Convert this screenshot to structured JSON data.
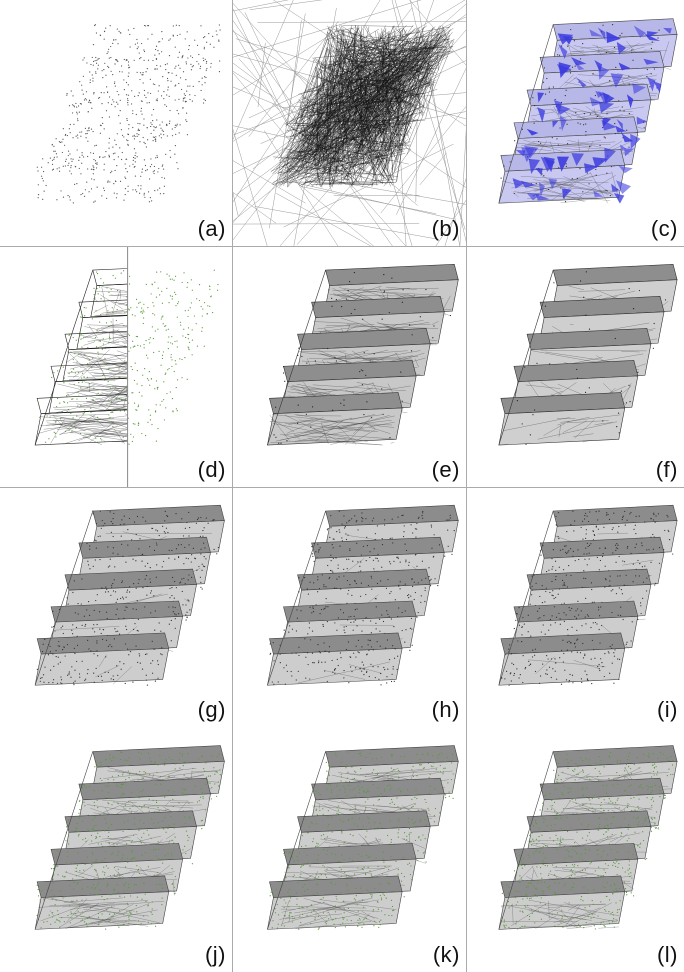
{
  "figure": {
    "panels": [
      {
        "id": "a",
        "label": "(a)",
        "style": "points"
      },
      {
        "id": "b",
        "label": "(b)",
        "style": "dense-lines"
      },
      {
        "id": "c",
        "label": "(c)",
        "style": "blue-mesh"
      },
      {
        "id": "d",
        "label": "(d)",
        "style": "split"
      },
      {
        "id": "e",
        "label": "(e)",
        "style": "mesh-holes"
      },
      {
        "id": "f",
        "label": "(f)",
        "style": "mesh-coarse"
      },
      {
        "id": "g",
        "label": "(g)",
        "style": "stairs"
      },
      {
        "id": "h",
        "label": "(h)",
        "style": "stairs"
      },
      {
        "id": "i",
        "label": "(i)",
        "style": "stairs"
      },
      {
        "id": "j",
        "label": "(j)",
        "style": "stairs-green"
      },
      {
        "id": "k",
        "label": "(k)",
        "style": "stairs-green"
      },
      {
        "id": "l",
        "label": "(l)",
        "style": "stairs-green"
      }
    ],
    "colors": {
      "point": "#555555",
      "line": "#111111",
      "mesh_fill_light": "#d0d0d0",
      "mesh_fill_dark": "#8a8a8a",
      "blue": "#3a3adf",
      "green": "#5a9a3a",
      "divider": "#aaaaaa"
    }
  }
}
